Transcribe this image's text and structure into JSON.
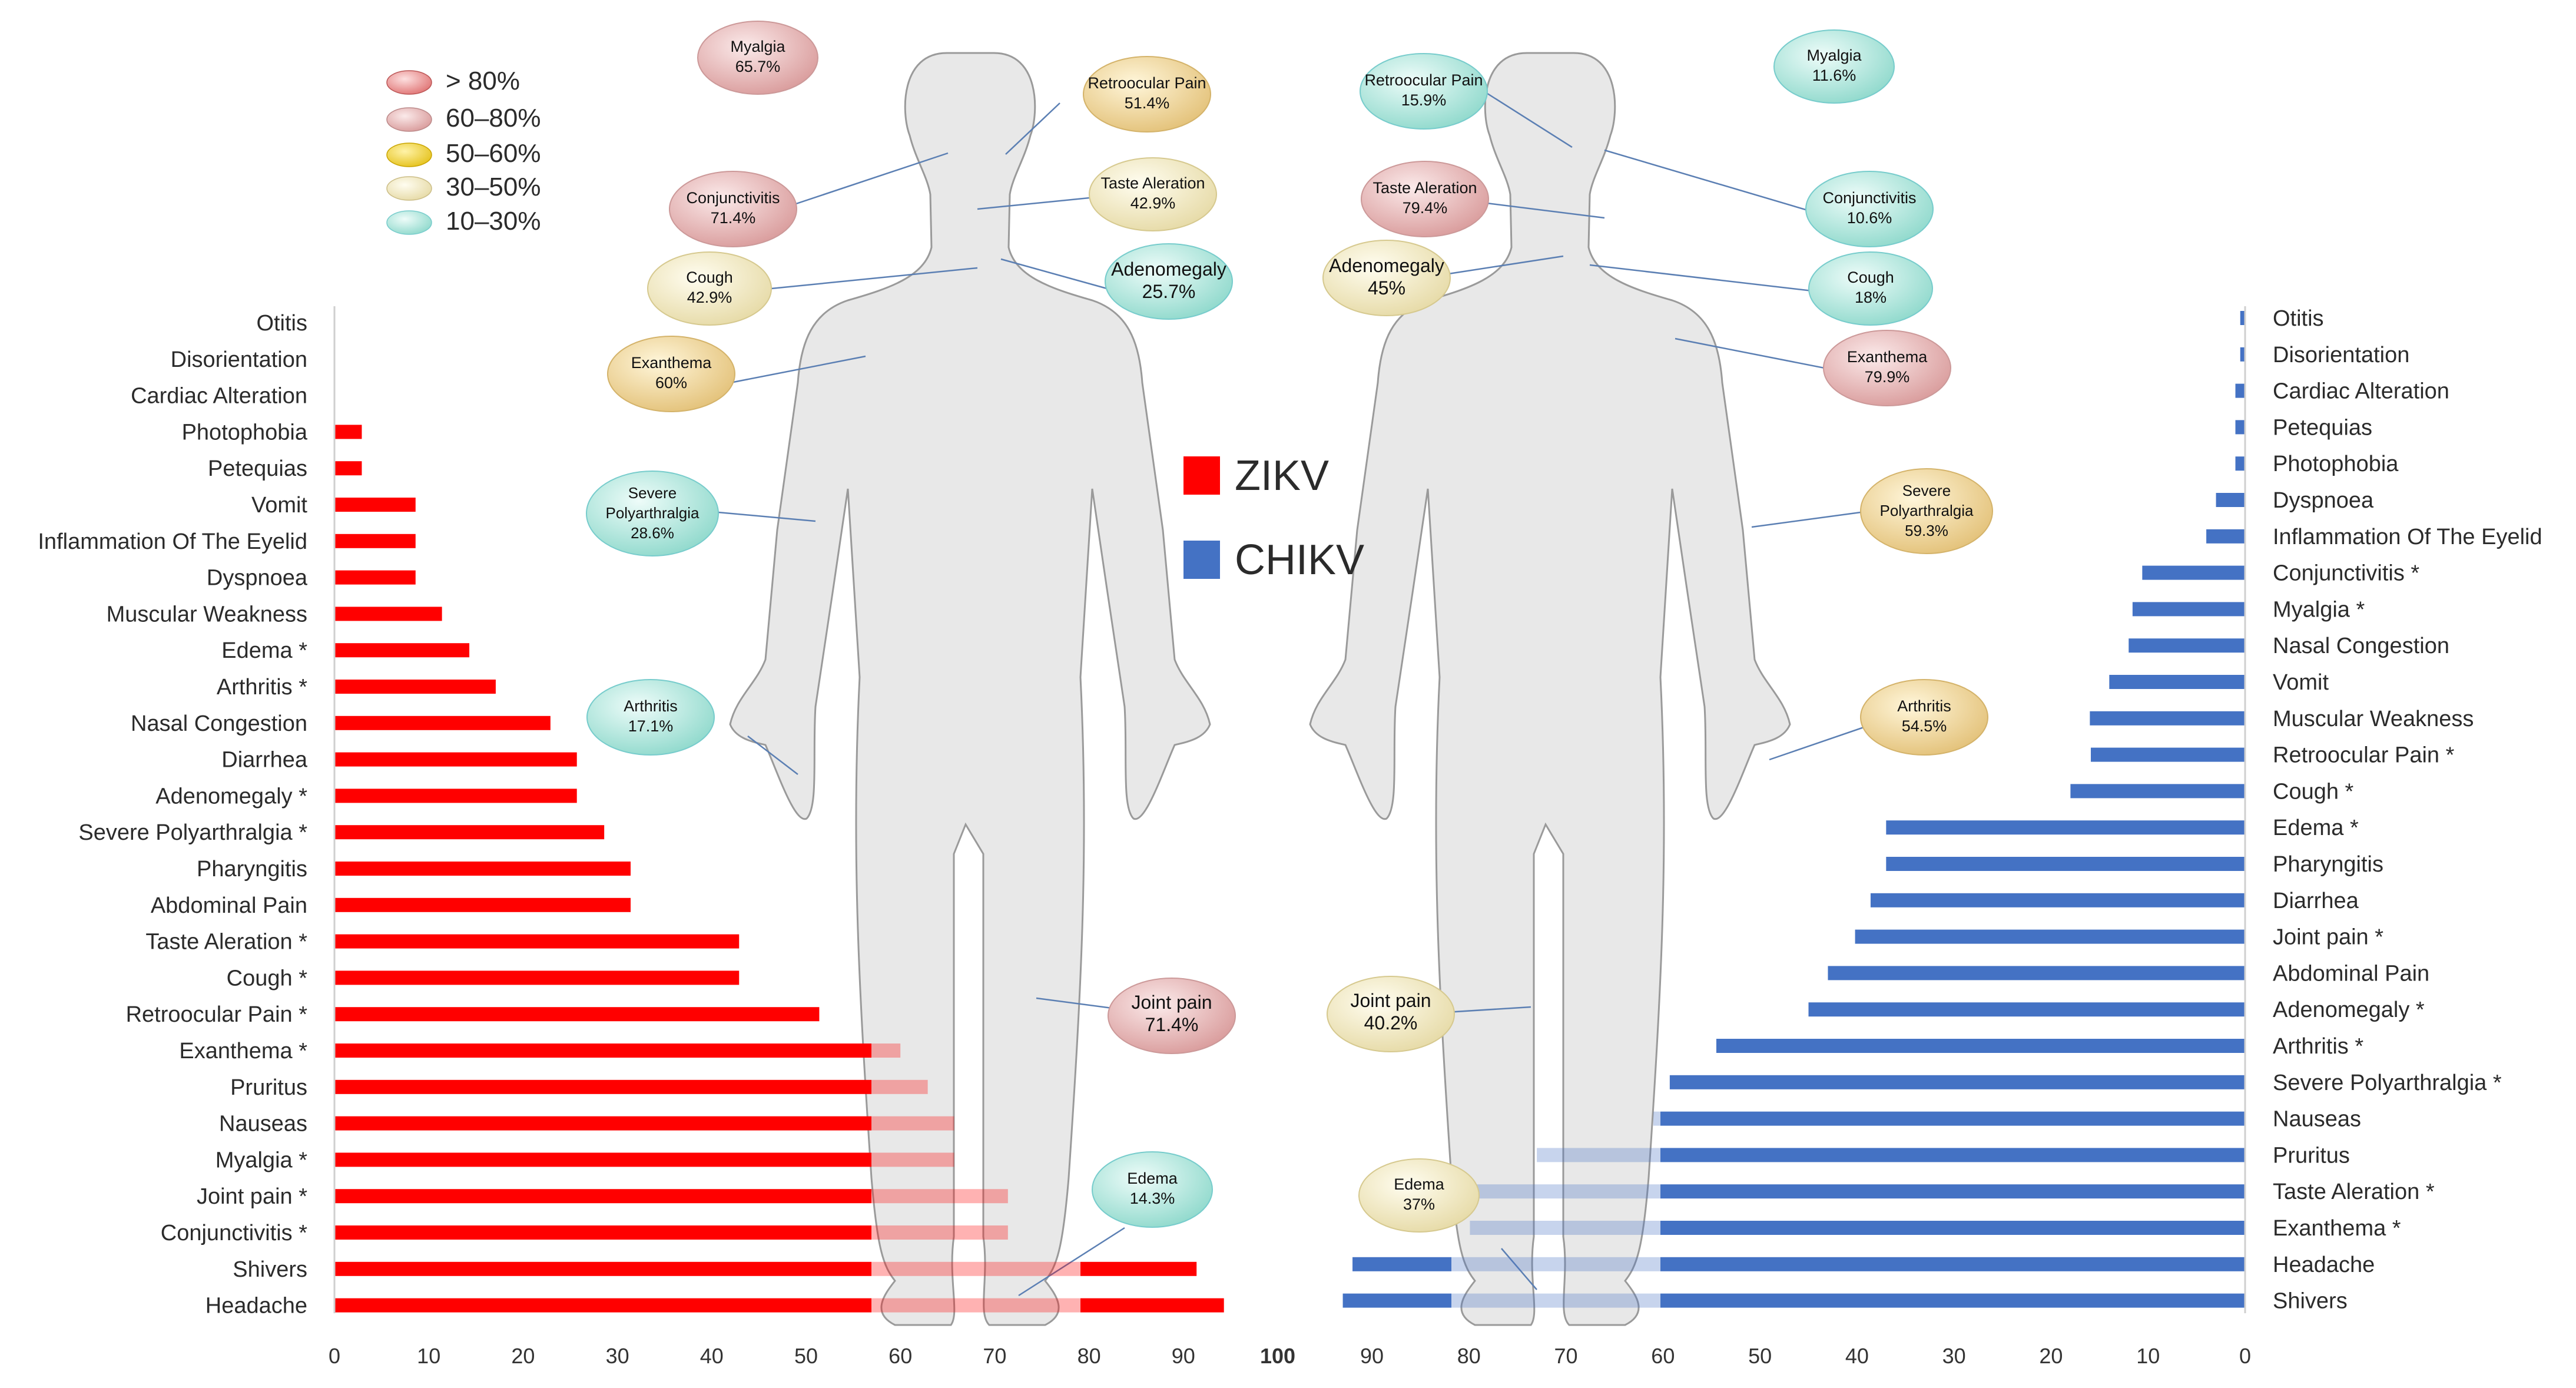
{
  "legend_scale": [
    {
      "label": "> 80%",
      "color": "#e07474"
    },
    {
      "label": "60–80%",
      "color": "#e8a6a6"
    },
    {
      "label": "50–60%",
      "color": "#f1d34a"
    },
    {
      "label": "30–50%",
      "color": "#f6eab8"
    },
    {
      "label": "10–30%",
      "color": "#a7e6dc"
    }
  ],
  "series_legend": [
    {
      "label": "ZIKV",
      "color": "#ff0000"
    },
    {
      "label": "CHIKV",
      "color": "#4472c4"
    }
  ],
  "chart_data": [
    {
      "type": "bar",
      "orientation": "horizontal",
      "series": "ZIKV",
      "color": "#ff0000",
      "xlim": [
        0,
        100
      ],
      "xticks": [
        "0",
        "10",
        "20",
        "30",
        "40",
        "50",
        "60",
        "70",
        "80",
        "90",
        "100"
      ],
      "categories": [
        "Otitis",
        "Disorientation",
        "Cardiac Alteration",
        "Photophobia",
        "Petequias",
        "Vomit",
        "Inflammation Of The Eyelid",
        "Dyspnoea",
        "Muscular Weakness",
        "Edema *",
        "Arthritis *",
        "Nasal Congestion",
        "Diarrhea",
        "Adenomegaly *",
        "Severe Polyarthralgia *",
        "Pharyngitis",
        "Abdominal Pain",
        "Taste Aleration *",
        "Cough *",
        "Retroocular Pain *",
        "Exanthema *",
        "Pruritus",
        "Nauseas",
        "Myalgia *",
        "Joint pain *",
        "Conjunctivitis *",
        "Shivers",
        "Headache"
      ],
      "values": [
        0,
        0,
        0,
        2.9,
        2.9,
        8.6,
        8.6,
        8.6,
        11.4,
        14.3,
        17.1,
        22.9,
        25.7,
        25.7,
        28.6,
        31.4,
        31.4,
        42.9,
        42.9,
        51.4,
        60,
        62.9,
        65.7,
        65.7,
        71.4,
        71.4,
        91.4,
        94.3
      ]
    },
    {
      "type": "bar",
      "orientation": "horizontal",
      "series": "CHIKV",
      "color": "#4472c4",
      "xlim": [
        100,
        0
      ],
      "xticks": [
        "90",
        "80",
        "70",
        "60",
        "50",
        "40",
        "30",
        "20",
        "10",
        "0"
      ],
      "categories": [
        "Otitis",
        "Disorientation",
        "Cardiac Alteration",
        "Petequias",
        "Photophobia",
        "Dyspnoea",
        "Inflammation Of The Eyelid",
        "Conjunctivitis *",
        "Myalgia *",
        "Nasal Congestion",
        "Vomit",
        "Muscular Weakness",
        "Retroocular Pain *",
        "Cough *",
        "Edema *",
        "Pharyngitis",
        "Diarrhea",
        "Joint pain *",
        "Abdominal Pain",
        "Adenomegaly *",
        "Arthritis *",
        "Severe Polyarthralgia *",
        "Nauseas",
        "Pruritus",
        "Taste Aleration *",
        "Exanthema *",
        "Headache",
        "Shivers"
      ],
      "values": [
        0.5,
        0.5,
        1,
        1,
        1,
        3,
        4,
        10.6,
        11.6,
        12,
        14,
        16,
        15.9,
        18,
        37,
        37,
        38.6,
        40.2,
        43,
        45,
        54.5,
        59.3,
        61,
        73,
        79.4,
        79.9,
        92,
        93
      ]
    }
  ],
  "body_annotations": {
    "zikv": [
      {
        "name": "Myalgia",
        "value": "65.7%",
        "level": 1
      },
      {
        "name": "Retroocular Pain",
        "value": "51.4%",
        "level": 2
      },
      {
        "name": "Conjunctivitis",
        "value": "71.4%",
        "level": 1
      },
      {
        "name": "Taste Aleration",
        "value": "42.9%",
        "level": 3
      },
      {
        "name": "Cough",
        "value": "42.9%",
        "level": 3
      },
      {
        "name": "Adenomegaly",
        "value": "25.7%",
        "level": 4
      },
      {
        "name": "Exanthema",
        "value": "60%",
        "level": 2
      },
      {
        "name": "Severe Polyarthralgia",
        "value": "28.6%",
        "level": 4
      },
      {
        "name": "Arthritis",
        "value": "17.1%",
        "level": 4
      },
      {
        "name": "Joint pain",
        "value": "71.4%",
        "level": 1
      },
      {
        "name": "Edema",
        "value": "14.3%",
        "level": 4
      }
    ],
    "chikv": [
      {
        "name": "Retroocular Pain",
        "value": "15.9%",
        "level": 4
      },
      {
        "name": "Myalgia",
        "value": "11.6%",
        "level": 4
      },
      {
        "name": "Taste Aleration",
        "value": "79.4%",
        "level": 1
      },
      {
        "name": "Conjunctivitis",
        "value": "10.6%",
        "level": 4
      },
      {
        "name": "Adenomegaly",
        "value": "45%",
        "level": 3
      },
      {
        "name": "Cough",
        "value": "18%",
        "level": 4
      },
      {
        "name": "Exanthema",
        "value": "79.9%",
        "level": 1
      },
      {
        "name": "Severe Polyarthralgia",
        "value": "59.3%",
        "level": 2
      },
      {
        "name": "Arthritis",
        "value": "54.5%",
        "level": 2
      },
      {
        "name": "Joint pain",
        "value": "40.2%",
        "level": 3
      },
      {
        "name": "Edema",
        "value": "37%",
        "level": 3
      }
    ]
  }
}
